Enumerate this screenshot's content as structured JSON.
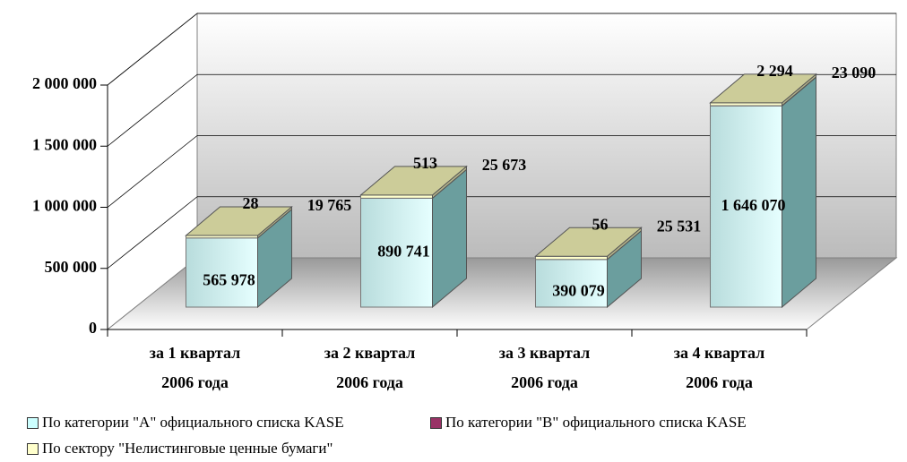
{
  "chart_data": {
    "type": "bar3d_stacked",
    "categories": [
      "за 1 квартал\n2006 года",
      "за 2 квартал\n2006 года",
      "за 3 квартал\n2006 года",
      "за 4 квартал\n2006 года"
    ],
    "series": [
      {
        "name": "По категории  \"А\" официального списка KASE",
        "color": "#ccffff",
        "values": [
          565978,
          890741,
          390079,
          1646070
        ],
        "value_labels": [
          "565 978",
          "890 741",
          "390 079",
          "1 646 070"
        ]
      },
      {
        "name": "По категории  \"В\" официального списка KASE",
        "color": "#993366",
        "values": [
          28,
          513,
          56,
          2294
        ],
        "value_labels": [
          "28",
          "513",
          "56",
          "2 294"
        ]
      },
      {
        "name": "По сектору \"Нелистинговые ценные бумаги\"",
        "color": "#ffffcc",
        "values": [
          19765,
          25673,
          25531,
          23090
        ],
        "value_labels": [
          "19 765",
          "25 673",
          "25 531",
          "23 090"
        ]
      }
    ],
    "ylim": [
      0,
      2000000
    ],
    "yticks": [
      0,
      {
        "value": 500000,
        "label": "500 000"
      },
      {
        "value": 1000000,
        "label": "1 000 000"
      },
      {
        "value": 1500000,
        "label": "1 500 000"
      },
      {
        "value": 2000000,
        "label": "2 000 000"
      }
    ],
    "grid": true
  }
}
